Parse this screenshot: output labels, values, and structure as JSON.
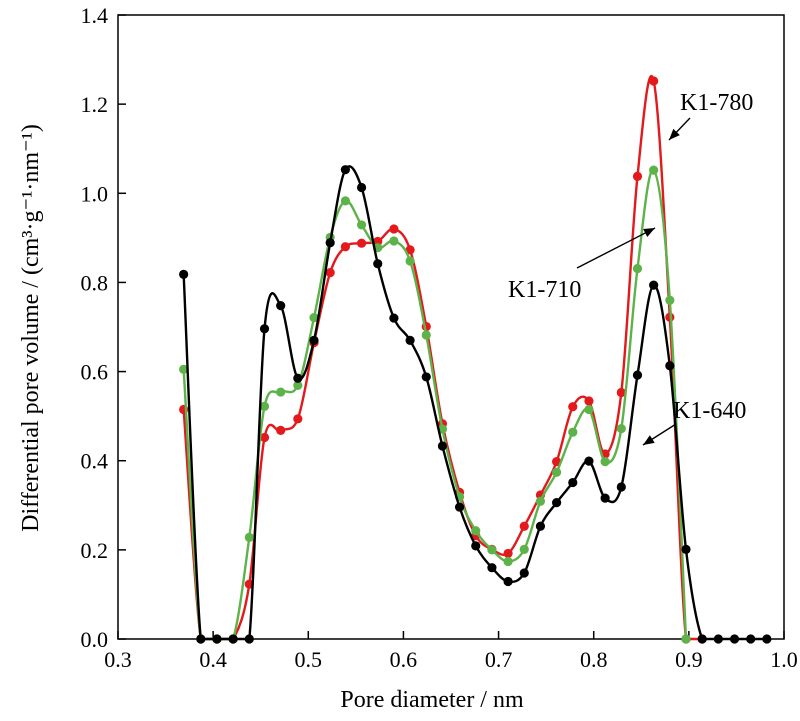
{
  "chart_data": {
    "type": "line",
    "xlabel": "Pore diameter / nm",
    "ylabel": "Differential pore volume / (cm³·g⁻¹·nm⁻¹)",
    "xlim": [
      0.3,
      1.0
    ],
    "ylim": [
      0.0,
      1.4
    ],
    "xticks": [
      "0.3",
      "0.4",
      "0.5",
      "0.6",
      "0.7",
      "0.8",
      "0.9",
      "1.0"
    ],
    "yticks": [
      "0.0",
      "0.2",
      "0.4",
      "0.6",
      "0.8",
      "1.0",
      "1.2",
      "1.4"
    ],
    "grid": false,
    "series": [
      {
        "name": "K1-780",
        "color": "#e3191c",
        "x": [
          0.369,
          0.387,
          0.404,
          0.421,
          0.438,
          0.454,
          0.471,
          0.489,
          0.506,
          0.523,
          0.539,
          0.556,
          0.573,
          0.59,
          0.607,
          0.624,
          0.641,
          0.659,
          0.676,
          0.693,
          0.71,
          0.727,
          0.744,
          0.761,
          0.778,
          0.795,
          0.812,
          0.829,
          0.846,
          0.863,
          0.88,
          0.897,
          0.914
        ],
        "y": [
          0.515,
          0.0,
          0.0,
          0.0,
          0.123,
          0.452,
          0.468,
          0.494,
          0.665,
          0.822,
          0.88,
          0.888,
          0.892,
          0.92,
          0.873,
          0.701,
          0.483,
          0.329,
          0.232,
          0.201,
          0.192,
          0.253,
          0.323,
          0.398,
          0.521,
          0.534,
          0.415,
          0.553,
          1.038,
          1.252,
          0.722,
          0.0,
          0.0
        ]
      },
      {
        "name": "K1-710",
        "color": "#5db34a",
        "x": [
          0.369,
          0.387,
          0.404,
          0.421,
          0.438,
          0.454,
          0.471,
          0.489,
          0.506,
          0.523,
          0.539,
          0.556,
          0.573,
          0.59,
          0.607,
          0.624,
          0.641,
          0.659,
          0.676,
          0.693,
          0.71,
          0.727,
          0.744,
          0.761,
          0.778,
          0.795,
          0.812,
          0.829,
          0.846,
          0.863,
          0.88,
          0.897
        ],
        "y": [
          0.605,
          0.0,
          0.0,
          0.0,
          0.228,
          0.522,
          0.554,
          0.569,
          0.721,
          0.901,
          0.983,
          0.929,
          0.878,
          0.893,
          0.848,
          0.682,
          0.471,
          0.319,
          0.243,
          0.2,
          0.174,
          0.201,
          0.309,
          0.374,
          0.464,
          0.515,
          0.398,
          0.472,
          0.831,
          1.052,
          0.76,
          0.0
        ]
      },
      {
        "name": "K1-640",
        "color": "#000000",
        "x": [
          0.369,
          0.387,
          0.404,
          0.421,
          0.438,
          0.454,
          0.471,
          0.489,
          0.506,
          0.523,
          0.539,
          0.556,
          0.573,
          0.59,
          0.607,
          0.624,
          0.641,
          0.659,
          0.676,
          0.693,
          0.71,
          0.727,
          0.744,
          0.761,
          0.778,
          0.795,
          0.812,
          0.829,
          0.846,
          0.863,
          0.88,
          0.897,
          0.914,
          0.931,
          0.948,
          0.965,
          0.982
        ],
        "y": [
          0.818,
          0.0,
          0.0,
          0.0,
          0.0,
          0.696,
          0.748,
          0.585,
          0.67,
          0.889,
          1.053,
          1.013,
          0.842,
          0.72,
          0.67,
          0.588,
          0.433,
          0.296,
          0.209,
          0.16,
          0.129,
          0.148,
          0.253,
          0.306,
          0.351,
          0.399,
          0.316,
          0.341,
          0.592,
          0.794,
          0.613,
          0.201,
          0.0,
          0.0,
          0.0,
          0.0,
          0.0
        ]
      }
    ],
    "annotations": [
      {
        "text": "K1-780",
        "series": "K1-780"
      },
      {
        "text": "K1-710",
        "series": "K1-710"
      },
      {
        "text": "K1-640",
        "series": "K1-640"
      }
    ]
  }
}
